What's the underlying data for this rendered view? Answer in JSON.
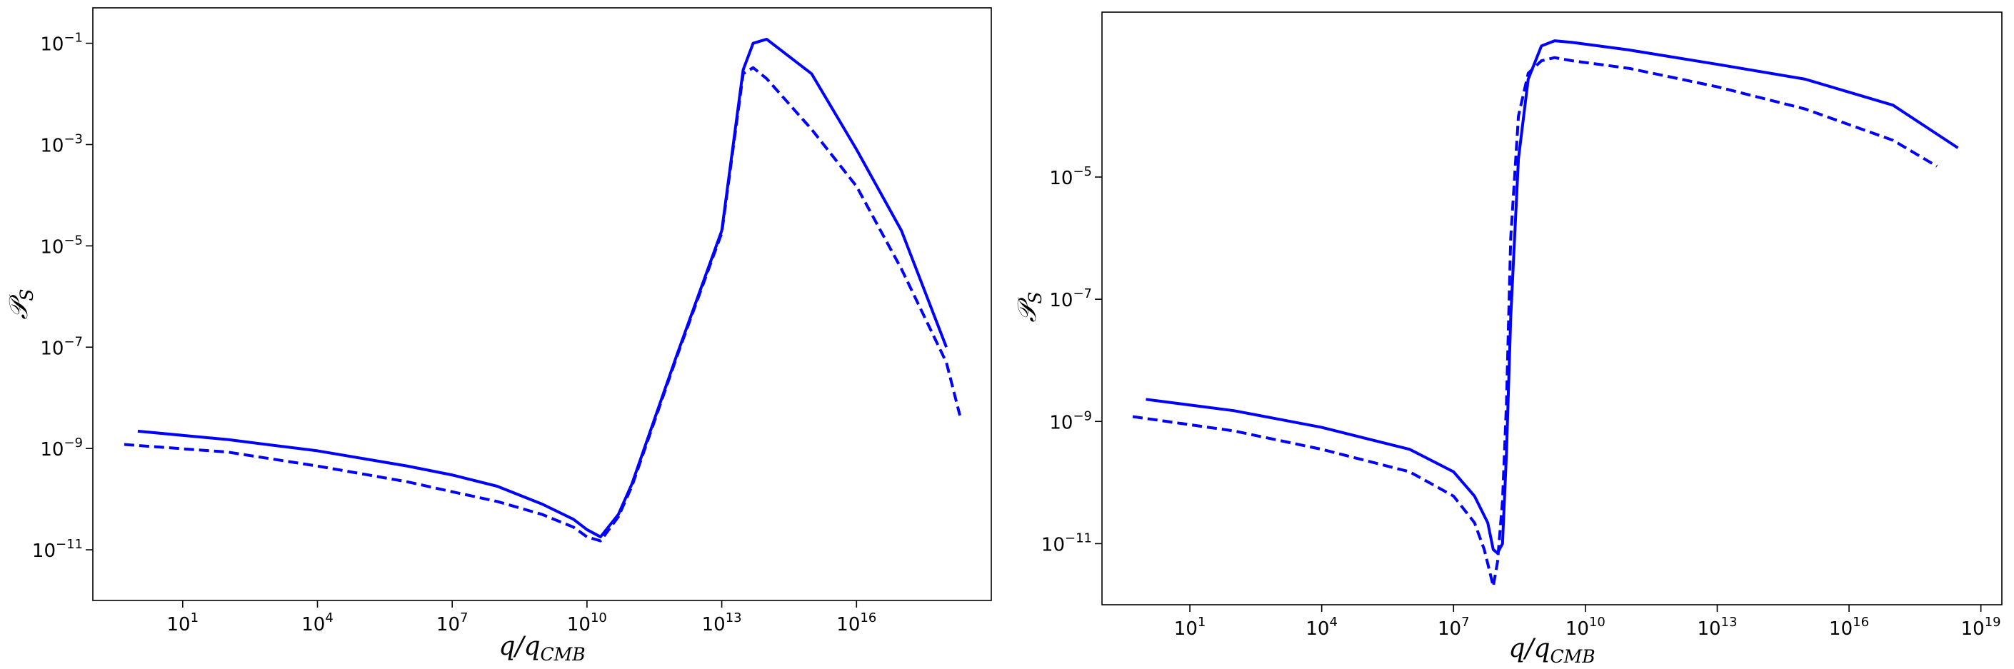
{
  "chart_data": [
    {
      "type": "line",
      "xscale": "log",
      "yscale": "log",
      "xlabel": {
        "base": "q/q",
        "sub": "CMB"
      },
      "ylabel": {
        "base": "𝒫",
        "sub": "S"
      },
      "xlim": [
        0.1,
        1e+19
      ],
      "ylim": [
        1e-12,
        0.5
      ],
      "xticks": [
        {
          "value": 10,
          "base": "10",
          "exp": "1"
        },
        {
          "value": 10000,
          "base": "10",
          "exp": "4"
        },
        {
          "value": 10000000.0,
          "base": "10",
          "exp": "7"
        },
        {
          "value": 10000000000.0,
          "base": "10",
          "exp": "10"
        },
        {
          "value": 10000000000000.0,
          "base": "10",
          "exp": "13"
        },
        {
          "value": 1e+16,
          "base": "10",
          "exp": "16"
        }
      ],
      "yticks": [
        {
          "value": 1e-11,
          "base": "10",
          "exp": "−11"
        },
        {
          "value": 1e-09,
          "base": "10",
          "exp": "−9"
        },
        {
          "value": 1e-07,
          "base": "10",
          "exp": "−7"
        },
        {
          "value": 1e-05,
          "base": "10",
          "exp": "−5"
        },
        {
          "value": 0.001,
          "base": "10",
          "exp": "−3"
        },
        {
          "value": 0.1,
          "base": "10",
          "exp": "−1"
        }
      ],
      "series": [
        {
          "style": "solid",
          "color": "#0000ff",
          "x": [
            1,
            100,
            10000,
            1000000,
            10000000.0,
            100000000.0,
            1000000000.0,
            5000000000.0,
            10000000000.0,
            20000000000.0,
            50000000000.0,
            100000000000.0,
            1000000000000.0,
            10000000000000.0,
            30000000000000.0,
            50000000000000.0,
            100000000000000.0,
            1000000000000000.0,
            1e+16,
            1e+17,
            1e+18
          ],
          "y": [
            2.2e-09,
            1.5e-09,
            9e-10,
            4.5e-10,
            3e-10,
            1.8e-10,
            8e-11,
            4e-11,
            2.5e-11,
            1.8e-11,
            5e-11,
            2e-10,
            7e-08,
            2e-05,
            0.03,
            0.1,
            0.12,
            0.025,
            0.0008,
            2e-05,
            1e-07
          ]
        },
        {
          "style": "dashed",
          "color": "#0000ff",
          "x": [
            0.5,
            100,
            10000,
            1000000,
            10000000.0,
            100000000.0,
            1000000000.0,
            5000000000.0,
            10000000000.0,
            20000000000.0,
            50000000000.0,
            100000000000.0,
            1000000000000.0,
            10000000000000.0,
            30000000000000.0,
            50000000000000.0,
            100000000000000.0,
            1000000000000000.0,
            1e+16,
            1e+17,
            1e+18,
            2e+18
          ],
          "y": [
            1.2e-09,
            8.5e-10,
            4.5e-10,
            2.2e-10,
            1.4e-10,
            9e-11,
            5e-11,
            2.8e-11,
            1.8e-11,
            1.5e-11,
            4.5e-11,
            1.8e-10,
            6.5e-08,
            1.8e-05,
            0.025,
            0.033,
            0.02,
            0.002,
            0.00015,
            3.5e-06,
            5e-08,
            4.5e-09
          ]
        }
      ]
    },
    {
      "type": "line",
      "xscale": "log",
      "yscale": "log",
      "xlabel": {
        "base": "q/q",
        "sub": "CMB"
      },
      "ylabel": {
        "base": "𝒫",
        "sub": "S"
      },
      "xlim": [
        0.1,
        3e+19
      ],
      "ylim": [
        1e-12,
        0.005
      ],
      "xticks": [
        {
          "value": 10,
          "base": "10",
          "exp": "1"
        },
        {
          "value": 10000,
          "base": "10",
          "exp": "4"
        },
        {
          "value": 10000000.0,
          "base": "10",
          "exp": "7"
        },
        {
          "value": 10000000000.0,
          "base": "10",
          "exp": "10"
        },
        {
          "value": 10000000000000.0,
          "base": "10",
          "exp": "13"
        },
        {
          "value": 1e+16,
          "base": "10",
          "exp": "16"
        },
        {
          "value": 1e+19,
          "base": "10",
          "exp": "19"
        }
      ],
      "yticks": [
        {
          "value": 1e-11,
          "base": "10",
          "exp": "−11"
        },
        {
          "value": 1e-09,
          "base": "10",
          "exp": "−9"
        },
        {
          "value": 1e-07,
          "base": "10",
          "exp": "−7"
        },
        {
          "value": 1e-05,
          "base": "10",
          "exp": "−5"
        }
      ],
      "series": [
        {
          "style": "solid",
          "color": "#0000ff",
          "x": [
            1,
            100,
            10000,
            1000000,
            10000000.0,
            30000000.0,
            60000000.0,
            80000000.0,
            100000000.0,
            130000000.0,
            160000000.0,
            200000000.0,
            300000000.0,
            500000000.0,
            1000000000.0,
            2000000000.0,
            5000000000.0,
            100000000000.0,
            10000000000000.0,
            1000000000000000.0,
            1e+17,
            3e+18
          ],
          "y": [
            2.3e-09,
            1.5e-09,
            8e-10,
            3.5e-10,
            1.5e-10,
            6e-11,
            2.2e-11,
            8e-12,
            7e-12,
            1e-11,
            3e-10,
            5e-08,
            2e-05,
            0.0004,
            0.0014,
            0.0017,
            0.0016,
            0.0012,
            0.0007,
            0.0004,
            0.00015,
            3e-05
          ]
        },
        {
          "style": "dashed",
          "color": "#0000ff",
          "x": [
            0.5,
            100,
            10000,
            1000000,
            10000000.0,
            30000000.0,
            50000000.0,
            70000000.0,
            80000000.0,
            100000000.0,
            130000000.0,
            160000000.0,
            200000000.0,
            300000000.0,
            500000000.0,
            1000000000.0,
            2000000000.0,
            5000000000.0,
            100000000000.0,
            10000000000000.0,
            1000000000000000.0,
            1e+17,
            1e+18
          ],
          "y": [
            1.2e-09,
            7e-10,
            3.5e-10,
            1.5e-10,
            6e-11,
            2.2e-11,
            8e-12,
            3e-12,
            2e-12,
            5e-12,
            5e-11,
            2e-09,
            1e-06,
            0.0001,
            0.0005,
            0.0008,
            0.0009,
            0.0008,
            0.0006,
            0.0003,
            0.00013,
            4e-05,
            1.5e-05
          ]
        }
      ]
    }
  ]
}
